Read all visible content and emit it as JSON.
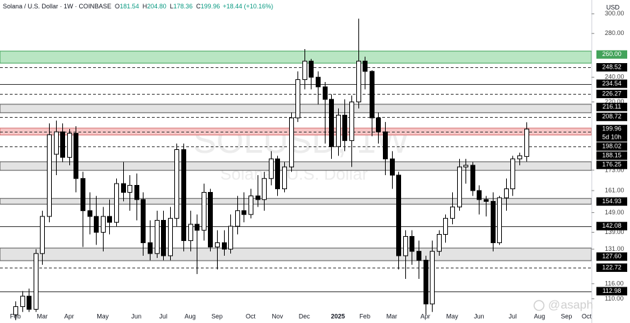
{
  "chart_data": {
    "type": "candlestick",
    "header": {
      "symbol": "Solana / U.S. Dollar · 1W · COINBASE",
      "ohlc": [
        {
          "key": "O",
          "value": "181.54"
        },
        {
          "key": "H",
          "value": "204.80"
        },
        {
          "key": "L",
          "value": "178.36"
        },
        {
          "key": "C",
          "value": "199.96"
        }
      ],
      "change": "+18.44 (+10.16%)"
    },
    "currency": "USD",
    "watermark": "SOLUSD, 1W",
    "watermark_sub": "Solana / U.S. Dollar",
    "author": "asaph",
    "log_scale": true,
    "ylim": [
      101,
      315
    ],
    "yticks": [
      {
        "value": 300,
        "label": "300.00"
      },
      {
        "value": 280,
        "label": "280.00"
      },
      {
        "value": 240,
        "label": "240.00"
      },
      {
        "value": 220,
        "label": "220.00"
      },
      {
        "value": 173,
        "label": "173.00"
      },
      {
        "value": 161,
        "label": "161.00"
      },
      {
        "value": 149,
        "label": "149.00"
      },
      {
        "value": 139,
        "label": "139.00"
      },
      {
        "value": 131,
        "label": "131.00"
      },
      {
        "value": 116,
        "label": "116.00"
      },
      {
        "value": 110,
        "label": "110.00"
      }
    ],
    "up_color": "#ffffff",
    "down_color": "#000000",
    "categories": [
      "Feb",
      null,
      null,
      null,
      "Mar",
      null,
      null,
      null,
      "Apr",
      null,
      null,
      null,
      null,
      "May",
      null,
      null,
      null,
      null,
      "Jun",
      null,
      null,
      null,
      "Jul",
      null,
      null,
      null,
      "Aug",
      null,
      null,
      null,
      "Sep",
      null,
      null,
      null,
      null,
      "Oct",
      null,
      null,
      null,
      "Nov",
      null,
      null,
      null,
      "Dec",
      null,
      null,
      null,
      null,
      "2025",
      null,
      null,
      null,
      "Feb",
      null,
      null,
      null,
      "Mar",
      null,
      null,
      null,
      null,
      "Apr",
      null,
      null,
      null,
      "May",
      null,
      null,
      null,
      "Jun",
      null,
      null,
      null,
      null,
      "Jul",
      null,
      null,
      null,
      "Aug",
      null,
      null,
      null,
      "Sep",
      null,
      null,
      "Oct"
    ],
    "ohlc": [
      [
        104,
        109,
        102,
        107
      ],
      [
        107,
        113,
        105,
        111
      ],
      [
        111,
        114,
        105,
        106
      ],
      [
        106,
        131,
        105,
        129
      ],
      [
        129,
        150,
        124,
        147
      ],
      [
        147,
        204,
        144,
        196
      ],
      [
        183,
        206,
        170,
        198
      ],
      [
        198,
        204,
        178,
        181
      ],
      [
        181,
        200,
        176,
        197
      ],
      [
        197,
        202,
        160,
        168
      ],
      [
        168,
        172,
        132,
        150
      ],
      [
        150,
        160,
        138,
        147
      ],
      [
        147,
        158,
        133,
        139
      ],
      [
        139,
        152,
        130,
        147
      ],
      [
        147,
        156,
        138,
        144
      ],
      [
        144,
        168,
        142,
        165
      ],
      [
        165,
        178,
        155,
        160
      ],
      [
        160,
        170,
        150,
        164
      ],
      [
        164,
        171,
        145,
        156
      ],
      [
        156,
        160,
        128,
        134
      ],
      [
        134,
        145,
        126,
        129
      ],
      [
        129,
        150,
        127,
        145
      ],
      [
        145,
        150,
        126,
        128
      ],
      [
        128,
        152,
        126,
        146
      ],
      [
        146,
        190,
        142,
        186
      ],
      [
        186,
        190,
        130,
        135
      ],
      [
        135,
        150,
        130,
        143
      ],
      [
        143,
        148,
        120,
        140
      ],
      [
        140,
        165,
        135,
        160
      ],
      [
        160,
        162,
        130,
        132
      ],
      [
        132,
        140,
        122,
        134
      ],
      [
        134,
        140,
        128,
        131
      ],
      [
        131,
        148,
        129,
        142
      ],
      [
        142,
        158,
        138,
        150
      ],
      [
        150,
        160,
        144,
        148
      ],
      [
        148,
        162,
        146,
        158
      ],
      [
        158,
        170,
        152,
        156
      ],
      [
        156,
        172,
        150,
        168
      ],
      [
        168,
        185,
        164,
        180
      ],
      [
        180,
        182,
        158,
        162
      ],
      [
        162,
        178,
        160,
        175
      ],
      [
        175,
        212,
        172,
        208
      ],
      [
        208,
        245,
        205,
        238
      ],
      [
        238,
        265,
        230,
        254
      ],
      [
        254,
        256,
        230,
        240
      ],
      [
        240,
        245,
        218,
        232
      ],
      [
        232,
        236,
        190,
        222
      ],
      [
        222,
        226,
        180,
        188
      ],
      [
        188,
        215,
        182,
        210
      ],
      [
        210,
        222,
        185,
        192
      ],
      [
        192,
        225,
        175,
        220
      ],
      [
        220,
        295,
        215,
        254
      ],
      [
        254,
        258,
        230,
        245
      ],
      [
        245,
        246,
        195,
        208
      ],
      [
        208,
        212,
        190,
        198
      ],
      [
        198,
        205,
        170,
        180
      ],
      [
        180,
        185,
        162,
        170
      ],
      [
        170,
        172,
        122,
        128
      ],
      [
        128,
        140,
        118,
        137
      ],
      [
        137,
        140,
        124,
        130
      ],
      [
        130,
        135,
        118,
        126
      ],
      [
        126,
        128,
        104,
        108
      ],
      [
        108,
        135,
        105,
        130
      ],
      [
        130,
        140,
        128,
        138
      ],
      [
        138,
        148,
        134,
        146
      ],
      [
        146,
        160,
        143,
        152
      ],
      [
        152,
        180,
        150,
        175
      ],
      [
        175,
        180,
        165,
        176
      ],
      [
        176,
        178,
        158,
        161
      ],
      [
        161,
        164,
        148,
        156
      ],
      [
        156,
        158,
        147,
        155
      ],
      [
        155,
        160,
        130,
        134
      ],
      [
        134,
        158,
        133,
        157
      ],
      [
        157,
        168,
        150,
        162
      ],
      [
        162,
        182,
        158,
        180
      ],
      [
        180,
        184,
        176,
        182
      ],
      [
        181.54,
        204.8,
        178.36,
        199.96
      ],
      null,
      null,
      null,
      null,
      null,
      null,
      null,
      null,
      null
    ],
    "current_price": {
      "value": 199.96,
      "label": "199.96",
      "countdown": "5d 10h"
    },
    "zones": [
      {
        "style": "zone-green",
        "range": [
          252.2,
          263.1
        ]
      },
      {
        "style": "zone-gray",
        "range": [
          211.8,
          218.2
        ]
      },
      {
        "style": "zone-red",
        "range": [
          195.8,
          200.6
        ]
      },
      {
        "style": "zone-gray",
        "range": [
          172.9,
          178.2
        ]
      },
      {
        "style": "zone-gray",
        "range": [
          153.5,
          156.6
        ]
      },
      {
        "style": "zone-gray",
        "range": [
          125.8,
          131.5
        ]
      }
    ],
    "levels": [
      {
        "value": 260,
        "label": "260.00",
        "style": "green"
      },
      {
        "value": 248.52,
        "label": "248.52",
        "style": "dashed"
      },
      {
        "value": 234.54,
        "label": "234.54",
        "style": "solid"
      },
      {
        "value": 226.27,
        "label": "226.27",
        "style": "dashed"
      },
      {
        "value": 216.11,
        "label": "216.11",
        "style": "none"
      },
      {
        "value": 208.72,
        "label": "208.72",
        "style": "dashed"
      },
      {
        "value": 198.02,
        "label": "198.02",
        "style": "dashed"
      },
      {
        "value": 188.15,
        "label": "188.15",
        "style": "dashed"
      },
      {
        "value": 176.25,
        "label": "176.25",
        "style": "none"
      },
      {
        "value": 154.93,
        "label": "154.93",
        "style": "none"
      },
      {
        "value": 142.08,
        "label": "142.08",
        "style": "solid"
      },
      {
        "value": 127.6,
        "label": "127.60",
        "style": "none"
      },
      {
        "value": 122.72,
        "label": "122.72",
        "style": "dashed"
      },
      {
        "value": 112.98,
        "label": "112.98",
        "style": "solid"
      }
    ]
  }
}
